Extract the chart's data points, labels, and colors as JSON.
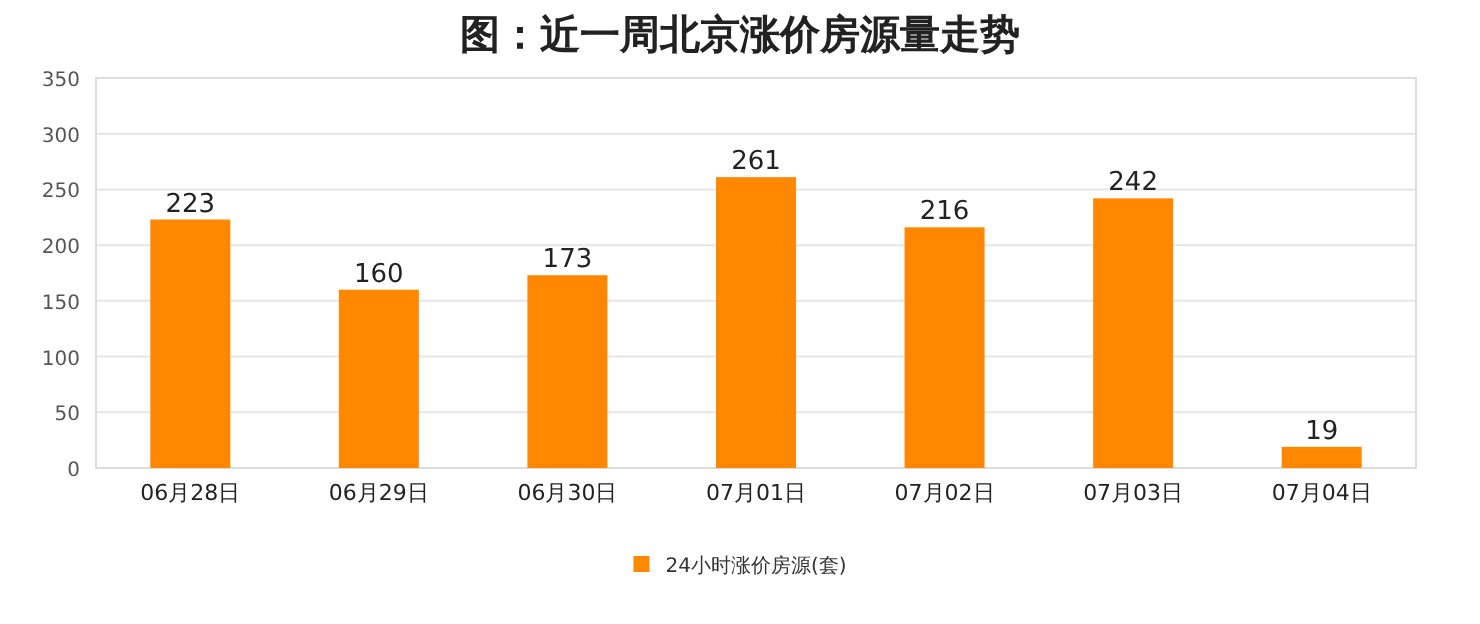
{
  "chart_data": {
    "type": "bar",
    "title": "图：近一周北京涨价房源量走势",
    "categories": [
      "06月28日",
      "06月29日",
      "06月30日",
      "07月01日",
      "07月02日",
      "07月03日",
      "07月04日"
    ],
    "series": [
      {
        "name": "24小时涨价房源(套)",
        "color": "#ff8800",
        "values": [
          223,
          160,
          173,
          261,
          216,
          242,
          19
        ]
      }
    ],
    "ylim": [
      0,
      350
    ],
    "yticks": [
      0,
      50,
      100,
      150,
      200,
      250,
      300,
      350
    ],
    "grid": "y",
    "legend": "bottom",
    "data_labels": true
  }
}
